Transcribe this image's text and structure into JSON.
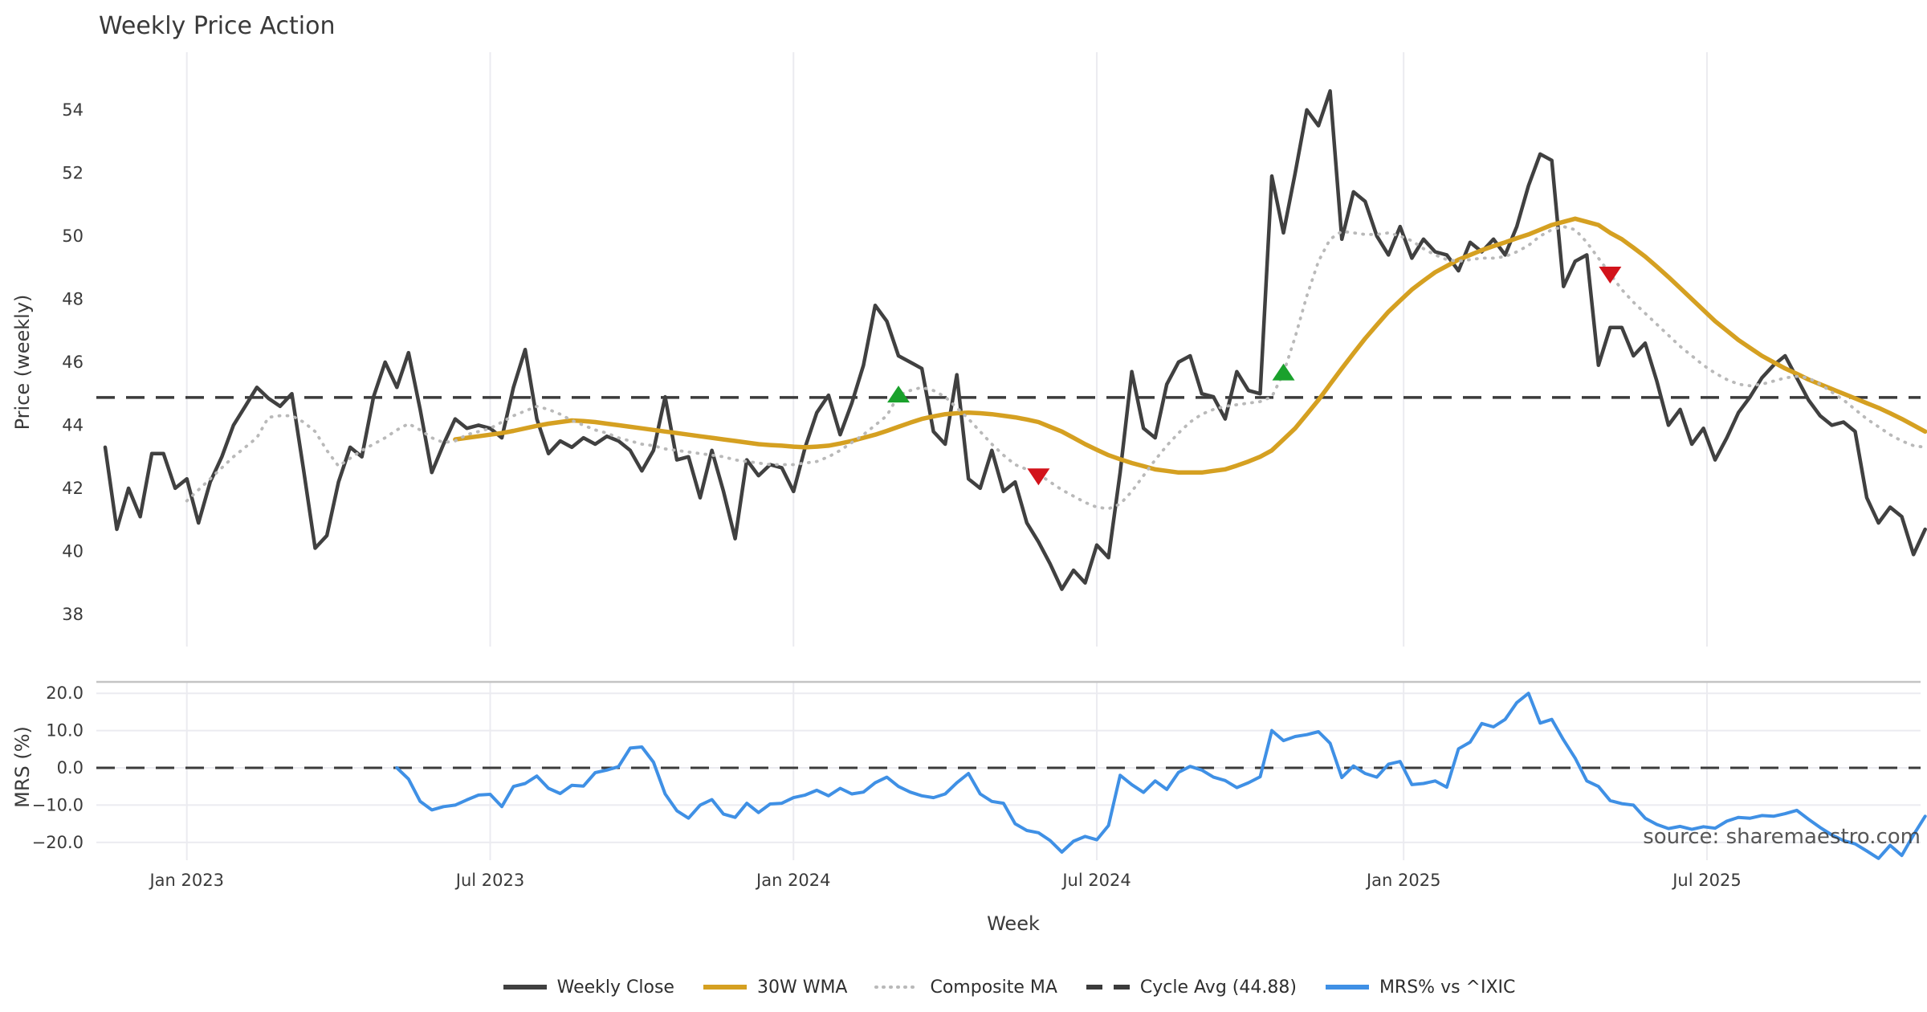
{
  "title": "Weekly Price Action",
  "xlabel": "Week",
  "watermark": "source: sharemaestro.com",
  "price_panel_label": "Price (weekly)",
  "mrs_panel_label": "MRS (%)",
  "colors": {
    "weekly_close": "#404040",
    "wma": "#d5a021",
    "composite": "#b9b9b9",
    "cycle_avg": "#3b3b3b",
    "mrs": "#3f90e5",
    "buy_marker": "#1aa12c",
    "sell_marker": "#d2131b",
    "grid": "#ebebf0",
    "panel_spine": "#c4c4c4",
    "watermark": "#999999"
  },
  "chart_data": {
    "type": "line",
    "title": "Weekly Price Action",
    "xlabel": "Week",
    "x_start_date": "2022-11-14",
    "x_step_days": 7,
    "x_ticks": [
      {
        "label": "Jan 2023",
        "week": 7
      },
      {
        "label": "Jul 2023",
        "week": 33
      },
      {
        "label": "Jan 2024",
        "week": 59
      },
      {
        "label": "Jul 2024",
        "week": 85
      },
      {
        "label": "Jan 2025",
        "week": 111.3
      },
      {
        "label": "Jul 2025",
        "week": 137.3
      }
    ],
    "price_panel": {
      "ylabel": "Price (weekly)",
      "ylim": [
        36.98,
        55.83
      ],
      "yticks": [
        38,
        40,
        42,
        44,
        46,
        48,
        50,
        52,
        54
      ],
      "cycle_avg": 44.88,
      "series": [
        {
          "name": "Weekly Close",
          "style": "solid",
          "start_week": 0,
          "values": [
            43.3,
            40.7,
            42.0,
            41.1,
            43.1,
            43.1,
            42.0,
            42.3,
            40.9,
            42.2,
            43.0,
            44.0,
            44.6,
            45.2,
            44.85,
            44.6,
            45.0,
            42.6,
            40.1,
            40.5,
            42.2,
            43.3,
            43.0,
            44.9,
            46.0,
            45.2,
            46.3,
            44.5,
            42.5,
            43.4,
            44.2,
            43.9,
            44.0,
            43.9,
            43.6,
            45.2,
            46.4,
            44.2,
            43.1,
            43.5,
            43.3,
            43.6,
            43.4,
            43.65,
            43.5,
            43.2,
            42.55,
            43.2,
            44.9,
            42.9,
            43.0,
            41.7,
            43.2,
            41.9,
            40.4,
            42.9,
            42.4,
            42.75,
            42.65,
            41.9,
            43.3,
            44.4,
            44.95,
            43.7,
            44.7,
            45.9,
            47.8,
            47.3,
            46.2,
            46.0,
            45.8,
            43.8,
            43.4,
            45.6,
            42.3,
            42.0,
            43.2,
            41.9,
            42.2,
            40.9,
            40.3,
            39.6,
            38.8,
            39.4,
            39.0,
            40.2,
            39.8,
            42.5,
            45.7,
            43.9,
            43.6,
            45.3,
            46.0,
            46.2,
            45.0,
            44.9,
            44.2,
            45.7,
            45.1,
            45.0,
            51.9,
            50.1,
            52.0,
            54.0,
            53.5,
            54.6,
            49.9,
            51.4,
            51.1,
            50.0,
            49.4,
            50.3,
            49.3,
            49.9,
            49.5,
            49.4,
            48.9,
            49.8,
            49.5,
            49.9,
            49.4,
            50.3,
            51.6,
            52.6,
            52.4,
            48.4,
            49.2,
            49.4,
            45.9,
            47.1,
            47.1,
            46.2,
            46.6,
            45.4,
            44.0,
            44.5,
            43.4,
            43.9,
            42.9,
            43.6,
            44.4,
            44.9,
            45.5,
            45.9,
            46.2,
            45.5,
            44.8,
            44.3,
            44.0,
            44.1,
            43.8,
            41.7,
            40.9,
            41.4,
            41.1,
            39.9,
            40.7
          ]
        },
        {
          "name": "30W WMA",
          "style": "solid",
          "start_week": 30,
          "values": [
            43.55,
            43.6,
            43.65,
            43.7,
            43.75,
            43.82,
            43.9,
            43.98,
            44.05,
            44.1,
            44.15,
            44.13,
            44.1,
            44.05,
            44.0,
            43.95,
            43.9,
            43.85,
            43.8,
            43.75,
            43.7,
            43.65,
            43.6,
            43.55,
            43.5,
            43.45,
            43.4,
            43.37,
            43.35,
            43.32,
            43.3,
            43.32,
            43.35,
            43.42,
            43.5,
            43.6,
            43.7,
            43.82,
            43.95,
            44.08,
            44.2,
            44.28,
            44.35,
            44.38,
            44.4,
            44.38,
            44.35,
            44.3,
            44.25,
            44.18,
            44.1,
            43.95,
            43.8,
            43.6,
            43.4,
            43.22,
            43.05,
            42.92,
            42.8,
            42.7,
            42.6,
            42.55,
            42.5,
            42.5,
            42.5,
            42.55,
            42.6,
            42.72,
            42.85,
            43.0,
            43.2,
            43.55,
            43.9,
            44.35,
            44.8,
            45.3,
            45.8,
            46.28,
            46.75,
            47.18,
            47.6,
            47.95,
            48.3,
            48.58,
            48.85,
            49.05,
            49.25,
            49.4,
            49.55,
            49.68,
            49.8,
            49.93,
            50.05,
            50.2,
            50.35,
            50.45,
            50.55,
            50.45,
            50.35,
            50.1,
            49.9,
            49.63,
            49.35,
            49.03,
            48.7,
            48.35,
            48.0,
            47.65,
            47.3,
            47.0,
            46.7,
            46.45,
            46.2,
            46.0,
            45.8,
            45.63,
            45.45,
            45.3,
            45.15,
            45.0,
            44.85,
            44.7,
            44.55,
            44.38,
            44.2,
            44.0,
            43.8
          ]
        },
        {
          "name": "Composite MA",
          "style": "dotted",
          "start_week": 7,
          "values": [
            41.6,
            41.95,
            42.3,
            42.65,
            43.0,
            43.3,
            43.6,
            44.25,
            44.3,
            44.3,
            44.1,
            43.8,
            43.2,
            42.7,
            42.95,
            43.2,
            43.4,
            43.6,
            43.85,
            44.05,
            43.85,
            43.6,
            43.45,
            43.5,
            43.7,
            43.8,
            43.9,
            44.1,
            44.3,
            44.45,
            44.6,
            44.5,
            44.35,
            44.15,
            44.0,
            43.85,
            43.75,
            43.6,
            43.5,
            43.4,
            43.35,
            43.25,
            43.2,
            43.15,
            43.1,
            43.05,
            43.0,
            42.9,
            42.85,
            42.8,
            42.75,
            42.75,
            42.75,
            42.8,
            42.85,
            43.0,
            43.2,
            43.45,
            43.7,
            44.0,
            44.3,
            44.95,
            45.1,
            45.2,
            45.1,
            44.9,
            44.55,
            44.2,
            43.8,
            43.4,
            43.05,
            42.75,
            42.6,
            42.45,
            42.2,
            41.95,
            41.75,
            41.55,
            41.4,
            41.35,
            41.5,
            41.9,
            42.4,
            42.9,
            43.35,
            43.75,
            44.1,
            44.35,
            44.5,
            44.6,
            44.65,
            44.7,
            44.75,
            44.9,
            45.65,
            46.8,
            48.1,
            49.2,
            49.9,
            50.15,
            50.1,
            50.05,
            50.05,
            50.1,
            50.0,
            49.85,
            49.6,
            49.4,
            49.25,
            49.2,
            49.25,
            49.3,
            49.3,
            49.35,
            49.5,
            49.7,
            50.0,
            50.2,
            50.3,
            50.2,
            49.8,
            49.3,
            48.8,
            48.3,
            47.9,
            47.55,
            47.2,
            46.85,
            46.5,
            46.2,
            45.9,
            45.65,
            45.45,
            45.3,
            45.25,
            45.3,
            45.4,
            45.5,
            45.55,
            45.5,
            45.3,
            45.05,
            44.8,
            44.5,
            44.2,
            43.95,
            43.7,
            43.5,
            43.35,
            43.3
          ]
        }
      ],
      "markers": {
        "buy": [
          {
            "week": 68,
            "price": 44.95
          },
          {
            "week": 101,
            "price": 45.65
          }
        ],
        "sell": [
          {
            "week": 80,
            "price": 42.4
          },
          {
            "week": 129,
            "price": 48.8
          }
        ]
      }
    },
    "mrs_panel": {
      "ylabel": "MRS (%)",
      "ylim": [
        -24.78,
        23.06
      ],
      "yticks": [
        {
          "label": "20.0",
          "value": 20
        },
        {
          "label": "10.0",
          "value": 10
        },
        {
          "label": "0.0",
          "value": 0
        },
        {
          "label": "−10.0",
          "value": -10
        },
        {
          "label": "−20.0",
          "value": -20
        }
      ],
      "zero_line": 0,
      "series": [
        {
          "name": "MRS% vs ^IXIC",
          "style": "solid",
          "start_week": 25,
          "values": [
            0.0,
            -3.0,
            -9.0,
            -11.3,
            -10.4,
            -10.0,
            -8.6,
            -7.3,
            -7.1,
            -10.4,
            -5.0,
            -4.2,
            -2.2,
            -5.5,
            -6.9,
            -4.7,
            -4.9,
            -1.3,
            -0.6,
            0.3,
            5.3,
            5.6,
            1.5,
            -7.0,
            -11.5,
            -13.5,
            -10.0,
            -8.5,
            -12.4,
            -13.3,
            -9.5,
            -12.0,
            -9.7,
            -9.5,
            -8.0,
            -7.3,
            -6.0,
            -7.5,
            -5.5,
            -7.0,
            -6.5,
            -4.0,
            -2.5,
            -5.0,
            -6.5,
            -7.5,
            -8.0,
            -7.0,
            -4.0,
            -1.5,
            -7.0,
            -9.0,
            -9.5,
            -15.0,
            -16.8,
            -17.4,
            -19.5,
            -22.6,
            -19.7,
            -18.4,
            -19.3,
            -15.5,
            -2.0,
            -4.5,
            -6.6,
            -3.5,
            -5.8,
            -1.2,
            0.4,
            -0.6,
            -2.5,
            -3.4,
            -5.3,
            -4.0,
            -2.4,
            10.0,
            7.3,
            8.4,
            8.9,
            9.7,
            6.6,
            -2.6,
            0.5,
            -1.5,
            -2.5,
            1.0,
            1.7,
            -4.5,
            -4.2,
            -3.5,
            -5.2,
            5.1,
            6.9,
            11.9,
            11.0,
            13.0,
            17.5,
            20.0,
            12.0,
            13.0,
            7.5,
            2.6,
            -3.5,
            -5.0,
            -8.8,
            -9.6,
            -10.0,
            -13.5,
            -15.2,
            -16.3,
            -15.7,
            -16.5,
            -15.8,
            -16.2,
            -14.3,
            -13.3,
            -13.5,
            -12.8,
            -13.0,
            -12.3,
            -11.4,
            -13.8,
            -16.0,
            -18.0,
            -19.5,
            -20.4,
            -22.3,
            -24.3,
            -20.8,
            -23.5,
            -18.0,
            -13.0
          ]
        }
      ]
    },
    "legend": [
      {
        "label": "Weekly Close",
        "style": "solid",
        "color_key": "weekly_close"
      },
      {
        "label": "30W WMA",
        "style": "solid",
        "color_key": "wma"
      },
      {
        "label": "Composite MA",
        "style": "dotted",
        "color_key": "composite"
      },
      {
        "label": "Cycle Avg (44.88)",
        "style": "dashed",
        "color_key": "cycle_avg"
      },
      {
        "label": "MRS% vs ^IXIC",
        "style": "solid",
        "color_key": "mrs"
      }
    ]
  }
}
